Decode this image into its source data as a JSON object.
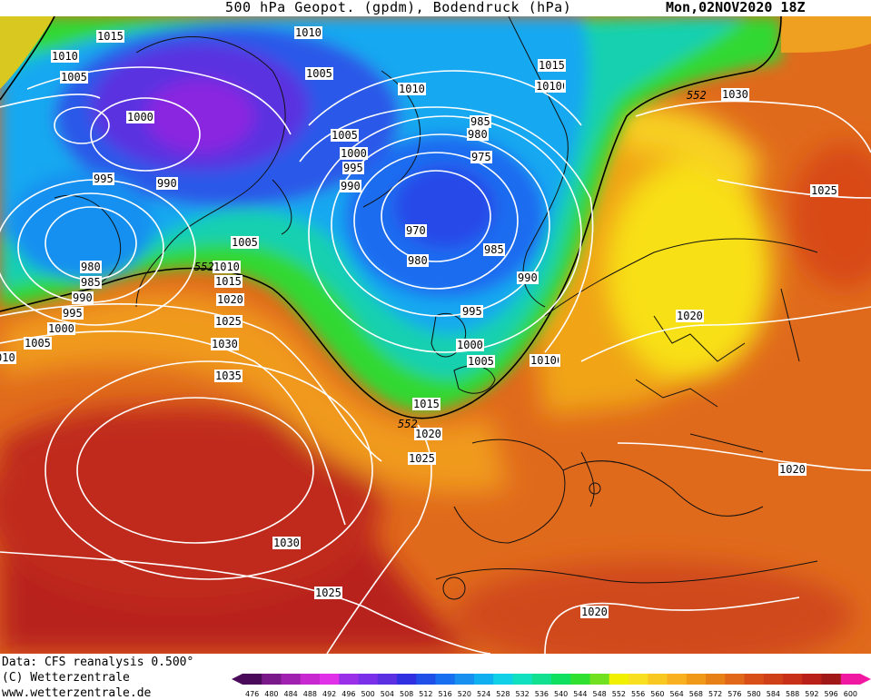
{
  "header": {
    "title": "500 hPa Geopot. (gpdm), Bodendruck (hPa)",
    "date": "Mon,02NOV2020 18Z"
  },
  "footer": {
    "credit_line1": "Data: CFS reanalysis 0.500°",
    "credit_line2": "(C) Wetterzentrale",
    "credit_line3": "www.wetterzentrale.de"
  },
  "legend": {
    "ticks": [
      "476",
      "480",
      "484",
      "488",
      "492",
      "496",
      "500",
      "504",
      "508",
      "512",
      "516",
      "520",
      "524",
      "528",
      "532",
      "536",
      "540",
      "544",
      "548",
      "552",
      "556",
      "560",
      "564",
      "568",
      "572",
      "576",
      "580",
      "584",
      "588",
      "592",
      "596",
      "600"
    ],
    "colors": [
      "#4a0a5a",
      "#7a1a8a",
      "#a020b0",
      "#c828d0",
      "#e030e8",
      "#9a30e8",
      "#7a30e8",
      "#5a30e0",
      "#3030e0",
      "#2050e8",
      "#1870f0",
      "#1890f0",
      "#10b0f0",
      "#10d0e8",
      "#10e0c0",
      "#10e090",
      "#10e060",
      "#30e030",
      "#70e020",
      "#f0f000",
      "#f8e020",
      "#f8c820",
      "#f8b020",
      "#f09818",
      "#e88018",
      "#e06818",
      "#d85018",
      "#d04018",
      "#c83018",
      "#b82018",
      "#a01818",
      "#f018a0"
    ]
  },
  "map_labels": {
    "isobars": [
      {
        "text": "1015"
      },
      {
        "text": "1010"
      },
      {
        "text": "1010"
      },
      {
        "text": "1005"
      },
      {
        "text": "1005"
      },
      {
        "text": "1000"
      },
      {
        "text": "995"
      },
      {
        "text": "990"
      },
      {
        "text": "980"
      },
      {
        "text": "985"
      },
      {
        "text": "990"
      },
      {
        "text": "995"
      },
      {
        "text": "1000"
      },
      {
        "text": "1005"
      },
      {
        "text": "010"
      },
      {
        "text": "1005"
      },
      {
        "text": "1010"
      },
      {
        "text": "1015"
      },
      {
        "text": "1020"
      },
      {
        "text": "1025"
      },
      {
        "text": "1030"
      },
      {
        "text": "1035"
      },
      {
        "text": "1030"
      },
      {
        "text": "1025"
      },
      {
        "text": "1020"
      },
      {
        "text": "1025"
      },
      {
        "text": "1015"
      },
      {
        "text": "1010"
      },
      {
        "text": "1005"
      },
      {
        "text": "1000"
      },
      {
        "text": "995"
      },
      {
        "text": "990"
      },
      {
        "text": "995"
      },
      {
        "text": "1005"
      },
      {
        "text": "1000"
      },
      {
        "text": "985"
      },
      {
        "text": "980"
      },
      {
        "text": "975"
      },
      {
        "text": "970"
      },
      {
        "text": "980"
      },
      {
        "text": "985"
      },
      {
        "text": "990"
      },
      {
        "text": "995"
      },
      {
        "text": "1000"
      },
      {
        "text": "1005"
      },
      {
        "text": "1010"
      },
      {
        "text": "1015"
      },
      {
        "text": "1010"
      },
      {
        "text": "1015"
      },
      {
        "text": "1010"
      },
      {
        "text": "1030"
      },
      {
        "text": "1025"
      },
      {
        "text": "1020"
      },
      {
        "text": "1020"
      },
      {
        "text": "1020"
      },
      {
        "text": "1010"
      }
    ],
    "geopotential": [
      {
        "text": "552"
      },
      {
        "text": "552"
      },
      {
        "text": "552"
      }
    ]
  }
}
